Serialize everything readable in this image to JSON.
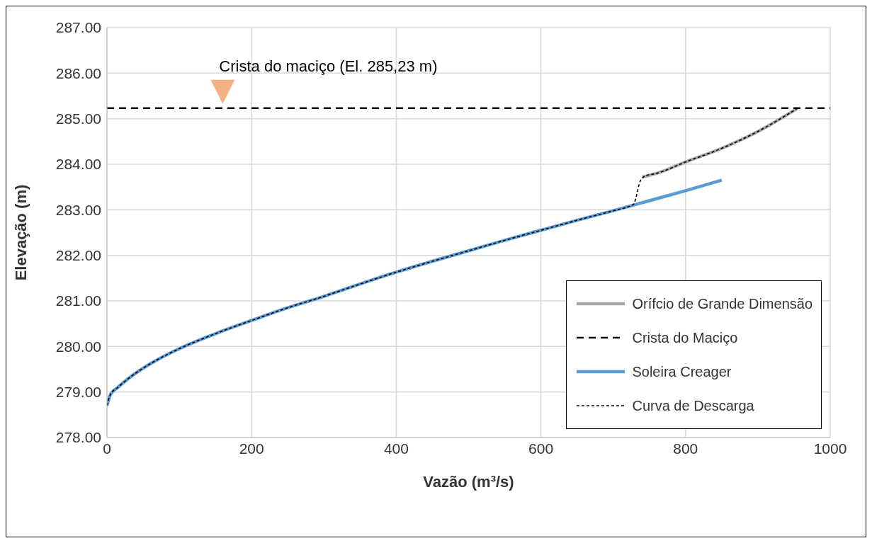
{
  "chart_data": {
    "type": "line",
    "xlabel": "Vazão (m³/s)",
    "ylabel": "Elevação (m)",
    "xlim": [
      0,
      1000
    ],
    "xticks": [
      0,
      200,
      400,
      600,
      800,
      1000
    ],
    "ylim": [
      278,
      287
    ],
    "yticks": [
      {
        "value": 278,
        "label": "278.00"
      },
      {
        "value": 279,
        "label": "279.00"
      },
      {
        "value": 280,
        "label": "280.00"
      },
      {
        "value": 281,
        "label": "281.00"
      },
      {
        "value": 282,
        "label": "282.00"
      },
      {
        "value": 283,
        "label": "283.00"
      },
      {
        "value": 284,
        "label": "284.00"
      },
      {
        "value": 285,
        "label": "285.00"
      },
      {
        "value": 286,
        "label": "286.00"
      },
      {
        "value": 287,
        "label": "287.00"
      }
    ],
    "grid": true,
    "legend": "bottom right",
    "marker": "none",
    "annotations": [
      {
        "text": "Crista do maciço (El. 285,23 m)",
        "x": 160,
        "y": 285.23
      }
    ],
    "series": [
      {
        "name": "Orífcio de Grande Dimensão",
        "color": "#a6a6a6",
        "line_style": "solid",
        "x": [
          740,
          760,
          800,
          850,
          900,
          955
        ],
        "values": [
          283.72,
          283.8,
          284.05,
          284.35,
          284.72,
          285.23
        ]
      },
      {
        "name": "Crista do Maciço",
        "color": "#000000",
        "line_style": "dashed",
        "x": [
          0,
          1000
        ],
        "values": [
          285.23,
          285.23
        ]
      },
      {
        "name": "Soleira Creager",
        "color": "#5b9bd5",
        "line_style": "solid",
        "x": [
          0,
          5,
          15,
          30,
          60,
          100,
          150,
          200,
          250,
          300,
          350,
          400,
          450,
          500,
          550,
          600,
          650,
          700,
          750,
          800,
          850
        ],
        "values": [
          278.7,
          278.95,
          279.1,
          279.3,
          279.62,
          279.95,
          280.28,
          280.57,
          280.85,
          281.1,
          281.37,
          281.63,
          281.87,
          282.1,
          282.33,
          282.55,
          282.77,
          282.98,
          283.2,
          283.42,
          283.65
        ]
      },
      {
        "name": "Curva de Descarga",
        "color": "#000000",
        "line_style": "dotted",
        "x": [
          0,
          5,
          15,
          30,
          60,
          100,
          150,
          200,
          250,
          300,
          350,
          400,
          450,
          500,
          550,
          600,
          650,
          700,
          728,
          732,
          737,
          745,
          760,
          800,
          850,
          900,
          955
        ],
        "values": [
          278.7,
          278.95,
          279.1,
          279.3,
          279.62,
          279.95,
          280.28,
          280.57,
          280.85,
          281.1,
          281.37,
          281.63,
          281.87,
          282.1,
          282.33,
          282.55,
          282.77,
          282.98,
          283.12,
          283.3,
          283.62,
          283.75,
          283.8,
          284.05,
          284.35,
          284.72,
          285.23
        ]
      }
    ]
  }
}
